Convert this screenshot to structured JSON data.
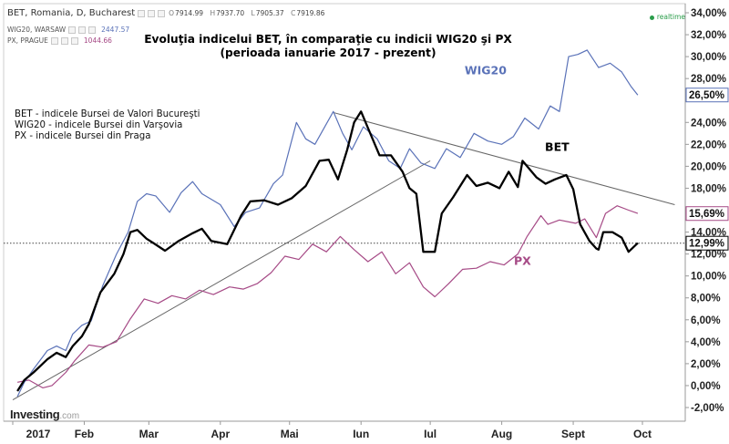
{
  "header": {
    "instrument_label": "BET, Romania, D, Bucharest",
    "ohlc": [
      {
        "label": "O",
        "value": "7914.99"
      },
      {
        "label": "H",
        "value": "7937.70"
      },
      {
        "label": "L",
        "value": "7905.37"
      },
      {
        "label": "C",
        "value": "7919.86"
      }
    ],
    "wig_label": "WIG20, WARSAW",
    "wig_value": "2447.57",
    "px_label": "PX, PRAGUE",
    "px_value": "1044.66",
    "realtime": "realtime"
  },
  "colors": {
    "bet": "#000000",
    "wig20": "#5a72b8",
    "px": "#a64a86",
    "axis": "#8a8a8a",
    "trend": "#666666"
  },
  "chart_data": {
    "type": "line",
    "title": "Evoluţia indicelui BET, în comparaţie cu indicii WIG20 şi PX",
    "subtitle": "(perioada ianuarie 2017 - prezent)",
    "x_ticks": [
      "2017",
      "Feb",
      "Mar",
      "Apr",
      "Mai",
      "Iun",
      "Iul",
      "Aug",
      "Sept",
      "Oct"
    ],
    "y_ticks": [
      "-2,00%",
      "0,00%",
      "2,00%",
      "4,00%",
      "6,00%",
      "8,00%",
      "10,00%",
      "12,00%",
      "14,00%",
      "16,00%",
      "18,00%",
      "20,00%",
      "22,00%",
      "24,00%",
      "26,00%",
      "28,00%",
      "30,00%",
      "32,00%",
      "34,00%"
    ],
    "ylim": [
      -2.5,
      34.5
    ],
    "last_value_labels": [
      {
        "series": "WIG20",
        "value": 26.5,
        "text": "26,50%"
      },
      {
        "series": "PX",
        "value": 15.69,
        "text": "15,69%"
      },
      {
        "series": "BET",
        "value": 12.99,
        "text": "12,99%"
      }
    ],
    "reference_line": 12.99,
    "legend_descriptions": [
      "BET - indicele Bursei de Valori Bucureşti",
      "WIG20 - indicele Bursei din Varşovia",
      "PX - indicele Bursei din Praga"
    ],
    "series": [
      {
        "name": "BET",
        "points": [
          [
            "2017-01-03",
            -0.5
          ],
          [
            "2017-01-06",
            0.5
          ],
          [
            "2017-01-10",
            1.2
          ],
          [
            "2017-01-16",
            2.4
          ],
          [
            "2017-01-20",
            3.0
          ],
          [
            "2017-01-24",
            2.6
          ],
          [
            "2017-01-27",
            3.6
          ],
          [
            "2017-01-31",
            4.5
          ],
          [
            "2017-02-03",
            5.6
          ],
          [
            "2017-02-08",
            8.5
          ],
          [
            "2017-02-14",
            10.2
          ],
          [
            "2017-02-18",
            12.0
          ],
          [
            "2017-02-21",
            14.0
          ],
          [
            "2017-02-24",
            14.2
          ],
          [
            "2017-02-28",
            13.4
          ],
          [
            "2017-03-03",
            13.0
          ],
          [
            "2017-03-08",
            12.3
          ],
          [
            "2017-03-14",
            13.2
          ],
          [
            "2017-03-20",
            13.9
          ],
          [
            "2017-03-24",
            14.3
          ],
          [
            "2017-03-28",
            13.2
          ],
          [
            "2017-04-04",
            12.9
          ],
          [
            "2017-04-10",
            15.5
          ],
          [
            "2017-04-14",
            16.8
          ],
          [
            "2017-04-20",
            16.9
          ],
          [
            "2017-04-26",
            16.5
          ],
          [
            "2017-05-02",
            17.1
          ],
          [
            "2017-05-08",
            18.2
          ],
          [
            "2017-05-14",
            20.5
          ],
          [
            "2017-05-18",
            20.6
          ],
          [
            "2017-05-22",
            18.8
          ],
          [
            "2017-05-26",
            21.5
          ],
          [
            "2017-05-29",
            24.0
          ],
          [
            "2017-06-01",
            25.0
          ],
          [
            "2017-06-05",
            23.0
          ],
          [
            "2017-06-09",
            21.0
          ],
          [
            "2017-06-14",
            21.0
          ],
          [
            "2017-06-19",
            19.5
          ],
          [
            "2017-06-22",
            18.0
          ],
          [
            "2017-06-25",
            17.5
          ],
          [
            "2017-06-28",
            12.2
          ],
          [
            "2017-07-03",
            12.2
          ],
          [
            "2017-07-06",
            15.7
          ],
          [
            "2017-07-11",
            17.2
          ],
          [
            "2017-07-17",
            19.2
          ],
          [
            "2017-07-21",
            18.2
          ],
          [
            "2017-07-26",
            18.5
          ],
          [
            "2017-07-31",
            18.0
          ],
          [
            "2017-08-04",
            19.5
          ],
          [
            "2017-08-08",
            18.1
          ],
          [
            "2017-08-10",
            20.5
          ],
          [
            "2017-08-16",
            19.0
          ],
          [
            "2017-08-20",
            18.4
          ],
          [
            "2017-08-24",
            18.8
          ],
          [
            "2017-08-29",
            19.2
          ],
          [
            "2017-09-01",
            17.9
          ],
          [
            "2017-09-04",
            14.7
          ],
          [
            "2017-09-08",
            13.2
          ],
          [
            "2017-09-11",
            12.5
          ],
          [
            "2017-09-12",
            12.4
          ],
          [
            "2017-09-14",
            14.0
          ],
          [
            "2017-09-18",
            14.0
          ],
          [
            "2017-09-22",
            13.5
          ],
          [
            "2017-09-25",
            12.2
          ],
          [
            "2017-09-29",
            13.0
          ]
        ]
      },
      {
        "name": "WIG20",
        "points": [
          [
            "2017-01-03",
            -1.0
          ],
          [
            "2017-01-06",
            0.3
          ],
          [
            "2017-01-10",
            1.5
          ],
          [
            "2017-01-16",
            3.2
          ],
          [
            "2017-01-20",
            3.6
          ],
          [
            "2017-01-24",
            3.2
          ],
          [
            "2017-01-27",
            4.7
          ],
          [
            "2017-01-31",
            5.5
          ],
          [
            "2017-02-04",
            5.9
          ],
          [
            "2017-02-09",
            9.1
          ],
          [
            "2017-02-15",
            12.0
          ],
          [
            "2017-02-20",
            14.0
          ],
          [
            "2017-02-24",
            16.8
          ],
          [
            "2017-02-28",
            17.5
          ],
          [
            "2017-03-04",
            17.3
          ],
          [
            "2017-03-10",
            15.8
          ],
          [
            "2017-03-15",
            17.6
          ],
          [
            "2017-03-20",
            18.6
          ],
          [
            "2017-03-24",
            17.5
          ],
          [
            "2017-04-01",
            16.5
          ],
          [
            "2017-04-07",
            14.5
          ],
          [
            "2017-04-12",
            15.8
          ],
          [
            "2017-04-18",
            16.2
          ],
          [
            "2017-04-24",
            18.4
          ],
          [
            "2017-04-28",
            19.2
          ],
          [
            "2017-05-04",
            24.0
          ],
          [
            "2017-05-08",
            22.5
          ],
          [
            "2017-05-12",
            22.0
          ],
          [
            "2017-05-16",
            23.5
          ],
          [
            "2017-05-20",
            25.0
          ],
          [
            "2017-05-24",
            23.0
          ],
          [
            "2017-05-28",
            21.5
          ],
          [
            "2017-06-02",
            23.6
          ],
          [
            "2017-06-08",
            22.5
          ],
          [
            "2017-06-13",
            20.5
          ],
          [
            "2017-06-18",
            19.8
          ],
          [
            "2017-06-22",
            21.6
          ],
          [
            "2017-06-27",
            20.3
          ],
          [
            "2017-07-03",
            19.8
          ],
          [
            "2017-07-08",
            21.6
          ],
          [
            "2017-07-14",
            20.8
          ],
          [
            "2017-07-20",
            23.0
          ],
          [
            "2017-07-26",
            22.3
          ],
          [
            "2017-08-01",
            22.0
          ],
          [
            "2017-08-06",
            22.7
          ],
          [
            "2017-08-11",
            24.4
          ],
          [
            "2017-08-17",
            23.4
          ],
          [
            "2017-08-22",
            25.5
          ],
          [
            "2017-08-26",
            25.0
          ],
          [
            "2017-08-30",
            30.0
          ],
          [
            "2017-09-03",
            30.2
          ],
          [
            "2017-09-07",
            30.6
          ],
          [
            "2017-09-12",
            29.0
          ],
          [
            "2017-09-17",
            29.4
          ],
          [
            "2017-09-22",
            28.6
          ],
          [
            "2017-09-26",
            27.3
          ],
          [
            "2017-09-29",
            26.5
          ]
        ]
      },
      {
        "name": "PX",
        "points": [
          [
            "2017-01-03",
            0.3
          ],
          [
            "2017-01-08",
            0.5
          ],
          [
            "2017-01-14",
            -0.2
          ],
          [
            "2017-01-18",
            0.0
          ],
          [
            "2017-01-24",
            1.2
          ],
          [
            "2017-01-28",
            2.3
          ],
          [
            "2017-02-03",
            3.7
          ],
          [
            "2017-02-09",
            3.5
          ],
          [
            "2017-02-15",
            4.0
          ],
          [
            "2017-02-21",
            6.1
          ],
          [
            "2017-02-27",
            7.9
          ],
          [
            "2017-03-05",
            7.5
          ],
          [
            "2017-03-11",
            8.2
          ],
          [
            "2017-03-17",
            7.9
          ],
          [
            "2017-03-23",
            8.7
          ],
          [
            "2017-03-29",
            8.3
          ],
          [
            "2017-04-05",
            9.0
          ],
          [
            "2017-04-11",
            8.8
          ],
          [
            "2017-04-17",
            9.3
          ],
          [
            "2017-04-23",
            10.3
          ],
          [
            "2017-04-29",
            11.8
          ],
          [
            "2017-05-05",
            11.5
          ],
          [
            "2017-05-11",
            12.9
          ],
          [
            "2017-05-17",
            12.2
          ],
          [
            "2017-05-23",
            13.6
          ],
          [
            "2017-05-29",
            12.4
          ],
          [
            "2017-06-04",
            11.3
          ],
          [
            "2017-06-10",
            12.2
          ],
          [
            "2017-06-16",
            10.2
          ],
          [
            "2017-06-22",
            11.2
          ],
          [
            "2017-06-28",
            9.0
          ],
          [
            "2017-07-03",
            8.1
          ],
          [
            "2017-07-09",
            9.3
          ],
          [
            "2017-07-15",
            10.6
          ],
          [
            "2017-07-21",
            10.7
          ],
          [
            "2017-07-27",
            11.3
          ],
          [
            "2017-08-02",
            11.0
          ],
          [
            "2017-08-08",
            12.0
          ],
          [
            "2017-08-12",
            13.6
          ],
          [
            "2017-08-18",
            15.5
          ],
          [
            "2017-08-21",
            14.7
          ],
          [
            "2017-08-26",
            15.1
          ],
          [
            "2017-09-02",
            14.8
          ],
          [
            "2017-09-06",
            15.2
          ],
          [
            "2017-09-11",
            13.5
          ],
          [
            "2017-09-15",
            15.7
          ],
          [
            "2017-09-20",
            16.4
          ],
          [
            "2017-09-25",
            16.0
          ],
          [
            "2017-09-29",
            15.7
          ]
        ]
      }
    ],
    "trend_lines": [
      {
        "from": [
          "2017-01-01",
          -1.3
        ],
        "to": [
          "2017-07-01",
          20.5
        ]
      },
      {
        "from": [
          "2017-05-20",
          24.9
        ],
        "to": [
          "2017-10-15",
          16.5
        ]
      }
    ],
    "series_labels": [
      {
        "name": "WIG20",
        "at": [
          "2017-07-25",
          28.4
        ]
      },
      {
        "name": "BET",
        "at": [
          "2017-08-25",
          21.4
        ]
      },
      {
        "name": "PX",
        "at": [
          "2017-08-10",
          11.0
        ]
      }
    ]
  },
  "logo": {
    "main": "Investing",
    "domain": ".com"
  }
}
